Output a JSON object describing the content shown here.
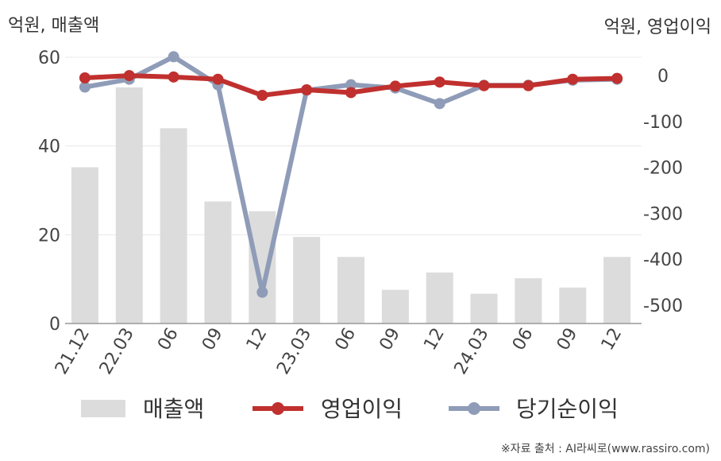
{
  "units": {
    "left": "억원, 매출액",
    "right": "억원, 영업이익"
  },
  "source": "※자료 출처 : AI라씨로(www.rassiro.com)",
  "colors": {
    "bars": "#dcdcdc",
    "operating": "#c0302e",
    "net": "#8f9cb8",
    "grid": "#e8e8e8",
    "axis": "#999999"
  },
  "chart_data": {
    "type": "bar+line",
    "categories": [
      "21.12",
      "22.03",
      "06",
      "09",
      "12",
      "23.03",
      "06",
      "09",
      "12",
      "24.03",
      "06",
      "09",
      "12"
    ],
    "left_axis": {
      "ylim": [
        0,
        60
      ],
      "ticks": [
        0,
        20,
        40,
        60
      ]
    },
    "right_axis": {
      "ylim": [
        -540,
        40
      ],
      "ticks": [
        0,
        -100,
        -200,
        -300,
        -400,
        -500
      ]
    },
    "series": [
      {
        "name": "매출액",
        "type": "bar",
        "axis": "left",
        "values": [
          35.2,
          53.2,
          44.0,
          27.5,
          25.3,
          19.5,
          15.0,
          7.6,
          11.5,
          6.7,
          10.2,
          8.1,
          15.0
        ]
      },
      {
        "name": "영업이익",
        "type": "line",
        "axis": "right",
        "values": [
          -5,
          0,
          -3,
          -8,
          -43,
          -31,
          -37,
          -23,
          -14,
          -22,
          -22,
          -8,
          -6
        ]
      },
      {
        "name": "당기순이익",
        "type": "line",
        "axis": "right",
        "values": [
          -25,
          -8,
          41,
          -20,
          -472,
          -32,
          -20,
          -27,
          -61,
          -21,
          -21,
          -10,
          -8
        ]
      }
    ]
  }
}
